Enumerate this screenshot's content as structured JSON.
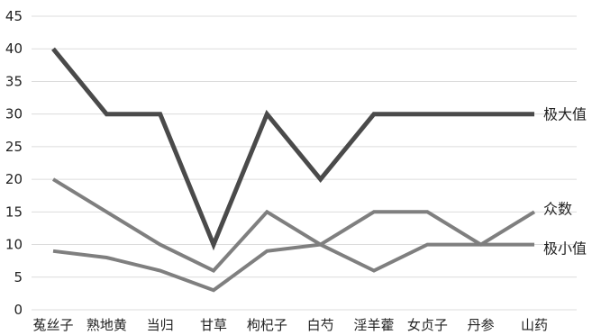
{
  "chart_data": {
    "type": "line",
    "categories": [
      "菟丝子",
      "熟地黄",
      "当归",
      "甘草",
      "枸杞子",
      "白芍",
      "淫羊藿",
      "女贞子",
      "丹参",
      "山药"
    ],
    "series": [
      {
        "name": "极大值",
        "values": [
          40,
          30,
          30,
          10,
          30,
          20,
          30,
          30,
          30,
          30
        ],
        "color": "#4a4a4a"
      },
      {
        "name": "众数",
        "values": [
          20,
          15,
          10,
          6,
          15,
          10,
          6,
          10,
          10,
          15
        ],
        "color": "#7f7f7f"
      },
      {
        "name": "极小值",
        "values": [
          9,
          8,
          6,
          3,
          9,
          10,
          15,
          15,
          10,
          10
        ],
        "color": "#7f7f7f"
      }
    ],
    "y_ticks": [
      "0",
      "5",
      "10",
      "15",
      "20",
      "25",
      "30",
      "35",
      "40",
      "45"
    ],
    "ylim": [
      0,
      45
    ],
    "grid": true,
    "legend": "right end labels"
  }
}
